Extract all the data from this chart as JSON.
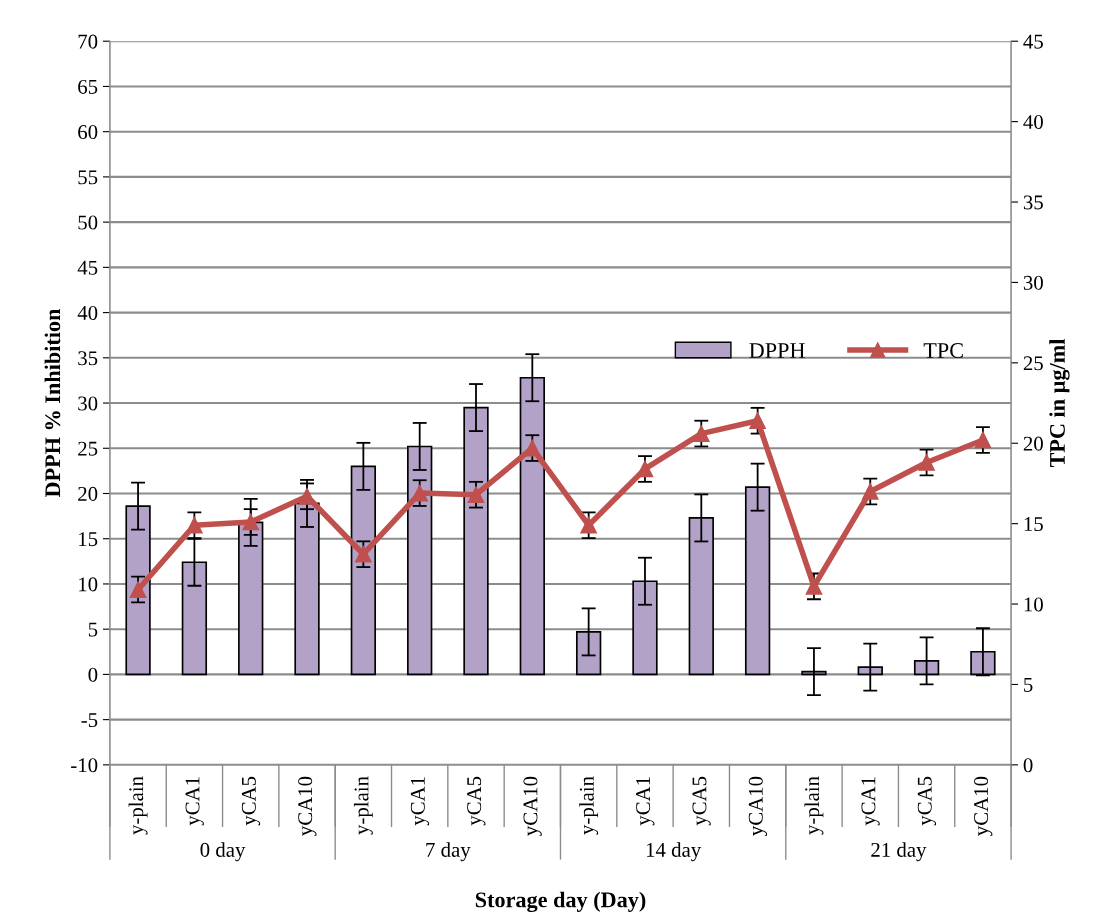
{
  "chart_data": {
    "type": "bar",
    "xlabel": "Storage day (Day)",
    "ylabel": "DPPH % Inhibition",
    "y2label": "TPC in µg/ml",
    "categories": [
      "y-plain",
      "yCA1",
      "yCA5",
      "yCA10",
      "y-plain",
      "yCA1",
      "yCA5",
      "yCA10",
      "y-plain",
      "yCA1",
      "yCA5",
      "yCA10",
      "y-plain",
      "yCA1",
      "yCA5",
      "yCA10"
    ],
    "annotations": [
      "0 day",
      "7 day",
      "14 day",
      "21 day"
    ],
    "series": [
      {
        "name": "DPPH",
        "color": "#b3a2c7",
        "values": [
          18.6,
          12.4,
          16.8,
          18.9,
          23.0,
          25.2,
          29.5,
          32.8,
          4.7,
          10.3,
          17.3,
          20.7,
          0.3,
          0.8,
          1.5,
          2.5
        ],
        "errors": [
          2.6,
          2.6,
          2.6,
          2.6,
          2.6,
          2.6,
          2.6,
          2.6,
          2.6,
          2.6,
          2.6,
          2.6,
          2.6,
          2.6,
          2.6,
          2.6
        ]
      },
      {
        "name": "TPC",
        "type": "line",
        "axis": "y2",
        "color": "#c0504d",
        "marker": "triangle",
        "values": [
          10.9,
          14.9,
          15.1,
          16.7,
          13.1,
          16.9,
          16.8,
          19.7,
          14.9,
          18.4,
          20.6,
          21.4,
          11.1,
          17.0,
          18.8,
          20.2
        ],
        "errors": [
          0.8,
          0.8,
          0.8,
          0.8,
          0.8,
          0.8,
          0.8,
          0.8,
          0.8,
          0.8,
          0.8,
          0.8,
          0.8,
          0.8,
          0.8,
          0.8
        ]
      }
    ],
    "ylim": [
      -10,
      70
    ],
    "yticks": [
      -10,
      -5,
      0,
      5,
      10,
      15,
      20,
      25,
      30,
      35,
      40,
      45,
      50,
      55,
      60,
      65,
      70
    ],
    "y2lim": [
      0,
      45
    ],
    "y2ticks": [
      0,
      5,
      10,
      15,
      20,
      25,
      30,
      35,
      40,
      45
    ],
    "grid": "y",
    "legend": "right"
  }
}
